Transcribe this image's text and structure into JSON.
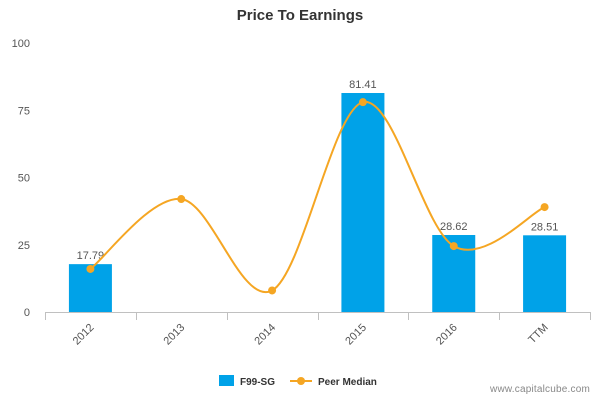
{
  "chart_data": {
    "type": "bar",
    "title": "Price To Earnings",
    "categories": [
      "2012",
      "2013",
      "2014",
      "2015",
      "2016",
      "TTM"
    ],
    "ylim": [
      0,
      100
    ],
    "yticks": [
      0,
      25,
      50,
      75,
      100
    ],
    "grid": false,
    "legend_position": "bottom-center",
    "series": [
      {
        "name": "F99-SG",
        "type": "bar",
        "color": "#00a2e8",
        "values": [
          17.79,
          null,
          null,
          81.41,
          28.62,
          28.51
        ],
        "labels": [
          "17.79",
          "",
          "",
          "81.41",
          "28.62",
          "28.51"
        ]
      },
      {
        "name": "Peer Median",
        "type": "spline",
        "color": "#f5a623",
        "values": [
          16,
          42,
          8,
          78,
          24.5,
          39
        ]
      }
    ]
  },
  "watermark": "www.capitalcube.com"
}
